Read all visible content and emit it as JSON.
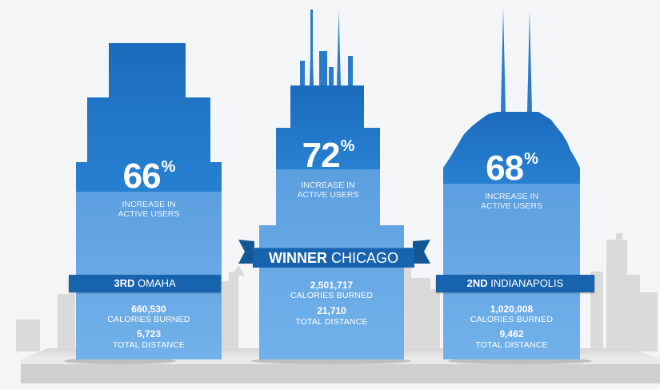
{
  "cities": [
    {
      "percent": "66",
      "percent_suffix": "%",
      "increase_label": "INCREASE IN",
      "increase_label_2": "ACTIVE USERS",
      "rank": "3RD",
      "city": "OMAHA",
      "calories": "660,530",
      "calories_label": "CALORIES BURNED",
      "distance": "5,723",
      "distance_label": "TOTAL DISTANCE"
    },
    {
      "percent": "72",
      "percent_suffix": "%",
      "increase_label": "INCREASE IN",
      "increase_label_2": "ACTIVE USERS",
      "rank": "WINNER",
      "city": "CHICAGO",
      "calories": "2,501,717",
      "calories_label": "CALORIES BURNED",
      "distance": "21,710",
      "distance_label": "TOTAL DISTANCE"
    },
    {
      "percent": "68",
      "percent_suffix": "%",
      "increase_label": "INCREASE IN",
      "increase_label_2": "ACTIVE USERS",
      "rank": "2ND",
      "city": "INDIANAPOLIS",
      "calories": "1,020,008",
      "calories_label": "CALORIES BURNED",
      "distance": "9,462",
      "distance_label": "TOTAL DISTANCE"
    }
  ],
  "colors": {
    "dark_blue": "#1f74c6",
    "light_blue": "#6aaae6",
    "band_blue": "#1763ad",
    "skyline_gray": "#dcdcdc",
    "platform_gray": "#e2e2e2"
  }
}
